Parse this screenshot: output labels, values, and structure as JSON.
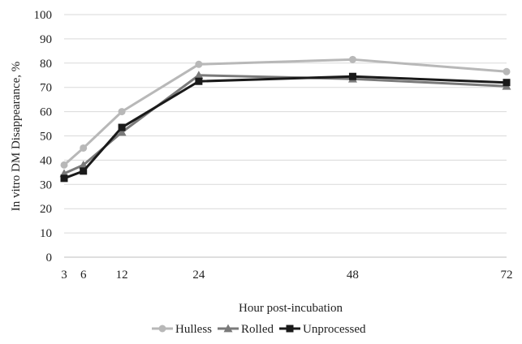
{
  "chart_data": {
    "type": "line",
    "title": "",
    "xlabel": "Hour post-incubation",
    "ylabel": "In vitro DM Disappearance, %",
    "x": [
      3,
      6,
      12,
      24,
      48,
      72
    ],
    "xticks": [
      3,
      6,
      12,
      24,
      48,
      72
    ],
    "yticks": [
      0,
      10,
      20,
      30,
      40,
      50,
      60,
      70,
      80,
      90,
      100
    ],
    "xlim": [
      3,
      72
    ],
    "ylim": [
      0,
      100
    ],
    "grid": "horizontal",
    "legend_position": "bottom",
    "series": [
      {
        "name": "Hulless",
        "color": "#b8b8b8",
        "marker": "circle",
        "values": [
          38,
          45,
          60,
          79.5,
          81.5,
          76.5
        ]
      },
      {
        "name": "Rolled",
        "color": "#7a7a7a",
        "marker": "triangle",
        "values": [
          34.5,
          38,
          51.5,
          75,
          73.5,
          70.5
        ]
      },
      {
        "name": "Unprocessed",
        "color": "#1a1a1a",
        "marker": "square",
        "values": [
          32.5,
          35.5,
          53.5,
          72.5,
          74.5,
          72
        ]
      }
    ]
  }
}
